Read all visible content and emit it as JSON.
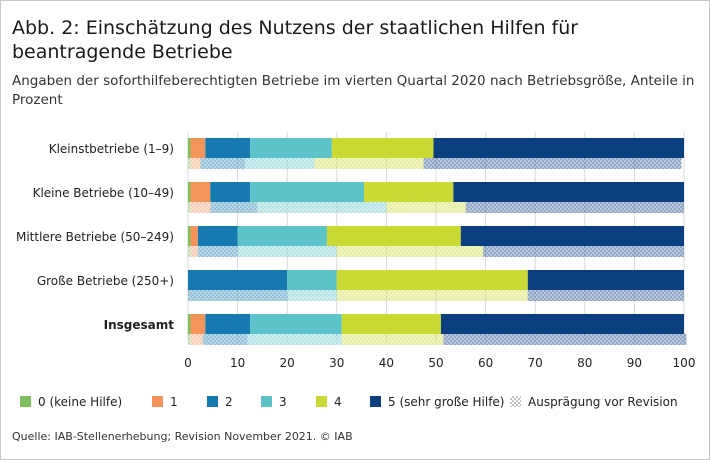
{
  "title": "Abb. 2: Einschätzung des Nutzens der staatlichen Hilfen für beantragende Betriebe",
  "subtitle": "Angaben der soforthilfeberechtigten Betriebe im vierten Quartal 2020 nach Betriebsgröße, Anteile in Prozent",
  "source": "Quelle: IAB-Stellenerhebung; Revision November 2021. © IAB",
  "chart_data": {
    "type": "bar",
    "orientation": "horizontal",
    "stacked": true,
    "categories": [
      "Kleinstbetriebe (1–9)",
      "Kleine Betriebe (10–49)",
      "Mittlere Betriebe (50–249)",
      "Große Betriebe (250+)",
      "Insgesamt"
    ],
    "bold_categories": [
      "Insgesamt"
    ],
    "series": [
      {
        "name": "0 (keine Hilfe)",
        "color": "#7dbf5f",
        "values": [
          0.5,
          0.5,
          0.5,
          0,
          0.5
        ],
        "pre_revision": [
          0.5,
          0.5,
          0.5,
          0,
          0.5
        ]
      },
      {
        "name": "1",
        "color": "#f4935a",
        "values": [
          3,
          4,
          1.5,
          0,
          3
        ],
        "pre_revision": [
          2,
          4,
          1.5,
          0,
          2.5
        ]
      },
      {
        "name": "2",
        "color": "#157ab0",
        "values": [
          9,
          8,
          8,
          20,
          9
        ],
        "pre_revision": [
          9,
          9.5,
          8,
          20,
          9
        ]
      },
      {
        "name": "3",
        "color": "#5cc3c8",
        "values": [
          16.5,
          23,
          18,
          10,
          18.5
        ],
        "pre_revision": [
          14,
          26,
          20,
          10,
          19
        ]
      },
      {
        "name": "4",
        "color": "#cbd935",
        "values": [
          20.5,
          18,
          27,
          38.5,
          20
        ],
        "pre_revision": [
          22,
          16,
          29.5,
          38.5,
          20.5
        ]
      },
      {
        "name": "5 (sehr große Hilfe)",
        "color": "#0b3f80",
        "values": [
          50.5,
          46.5,
          45,
          31.5,
          49
        ],
        "pre_revision": [
          52,
          44,
          40.5,
          31.5,
          49
        ]
      }
    ],
    "legend_extra": "Ausprägung vor Revision",
    "xlim": [
      0,
      100
    ],
    "xticks": [
      0,
      10,
      20,
      30,
      40,
      50,
      60,
      70,
      80,
      90,
      100
    ],
    "grid": true,
    "legend_position": "bottom"
  }
}
